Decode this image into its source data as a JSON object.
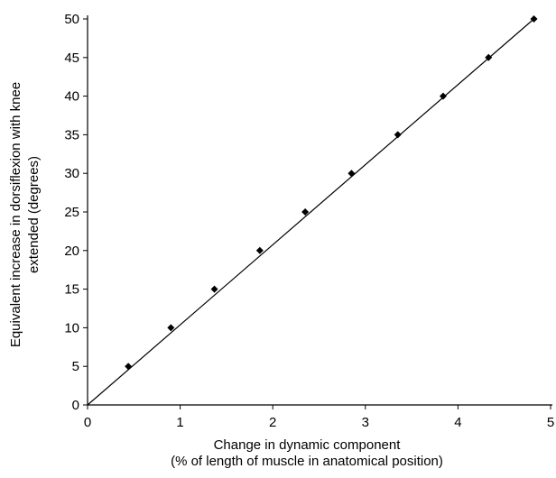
{
  "chart_data": {
    "type": "line",
    "xlabel_lines": [
      "Change in dynamic component",
      "(% of length of muscle in anatomical position)"
    ],
    "ylabel_lines": [
      "Equivalent increase in dorsiflexion with knee",
      "extended (degrees)"
    ],
    "xlim": [
      0,
      5
    ],
    "ylim": [
      0,
      50
    ],
    "xticks": [
      0,
      1,
      2,
      3,
      4,
      5
    ],
    "yticks": [
      0,
      5,
      10,
      15,
      20,
      25,
      30,
      35,
      40,
      45,
      50
    ],
    "grid": false,
    "series": [
      {
        "marker": "diamond",
        "color": "#000000",
        "points": [
          {
            "x": 0.44,
            "y": 5
          },
          {
            "x": 0.9,
            "y": 10
          },
          {
            "x": 1.37,
            "y": 15
          },
          {
            "x": 1.86,
            "y": 20
          },
          {
            "x": 2.35,
            "y": 25
          },
          {
            "x": 2.85,
            "y": 30
          },
          {
            "x": 3.35,
            "y": 35
          },
          {
            "x": 3.84,
            "y": 40
          },
          {
            "x": 4.33,
            "y": 45
          },
          {
            "x": 4.82,
            "y": 50
          }
        ]
      }
    ],
    "fit_line": {
      "x": [
        0,
        4.82
      ],
      "y": [
        0,
        50
      ]
    }
  }
}
